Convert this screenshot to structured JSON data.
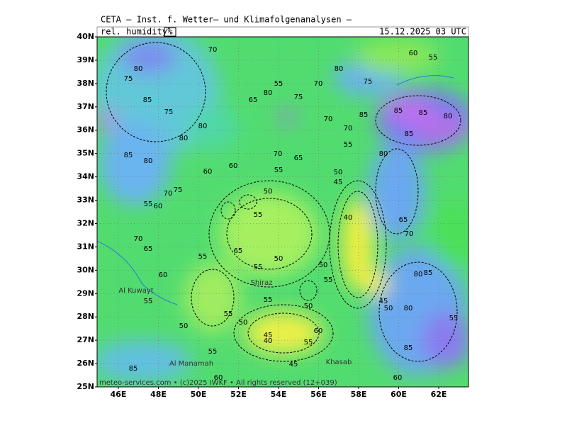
{
  "header": {
    "title": "CETA — Inst. f. Wetter— und Klimafolgenanalysen —",
    "variable": "rel. humidity",
    "unit": "%",
    "time": "15.12.2025 03 UTC"
  },
  "map": {
    "lat_labels": [
      "40N",
      "39N",
      "38N",
      "37N",
      "36N",
      "35N",
      "34N",
      "33N",
      "32N",
      "31N",
      "30N",
      "29N",
      "28N",
      "27N",
      "26N",
      "25N"
    ],
    "lon_labels": [
      "46E",
      "48E",
      "50E",
      "52E",
      "54E",
      "56E",
      "58E",
      "60E",
      "62E"
    ],
    "places": [
      "Al Kuwayt",
      "Shiraz",
      "Al Manamah",
      "Khasab"
    ],
    "contour_labels": [
      "70",
      "60",
      "55",
      "80",
      "75",
      "55",
      "70",
      "80",
      "75",
      "65",
      "80",
      "75",
      "85",
      "75",
      "80",
      "85",
      "85",
      "85",
      "80",
      "70",
      "70",
      "80",
      "85",
      "85",
      "80",
      "70",
      "65",
      "55",
      "80",
      "60",
      "60",
      "55",
      "50",
      "45",
      "70",
      "75",
      "50",
      "55",
      "60",
      "55",
      "40",
      "65",
      "70",
      "70",
      "65",
      "55",
      "65",
      "50",
      "55",
      "50",
      "55",
      "60",
      "80",
      "85",
      "55",
      "55",
      "50",
      "45",
      "50",
      "55",
      "50",
      "50",
      "60",
      "45",
      "40",
      "55",
      "55",
      "85",
      "45",
      "85",
      "60",
      "60",
      "80",
      "55"
    ]
  },
  "footer": "meteo-services.com • (c)2025 IWKF • All rights reserved (12+039)"
}
